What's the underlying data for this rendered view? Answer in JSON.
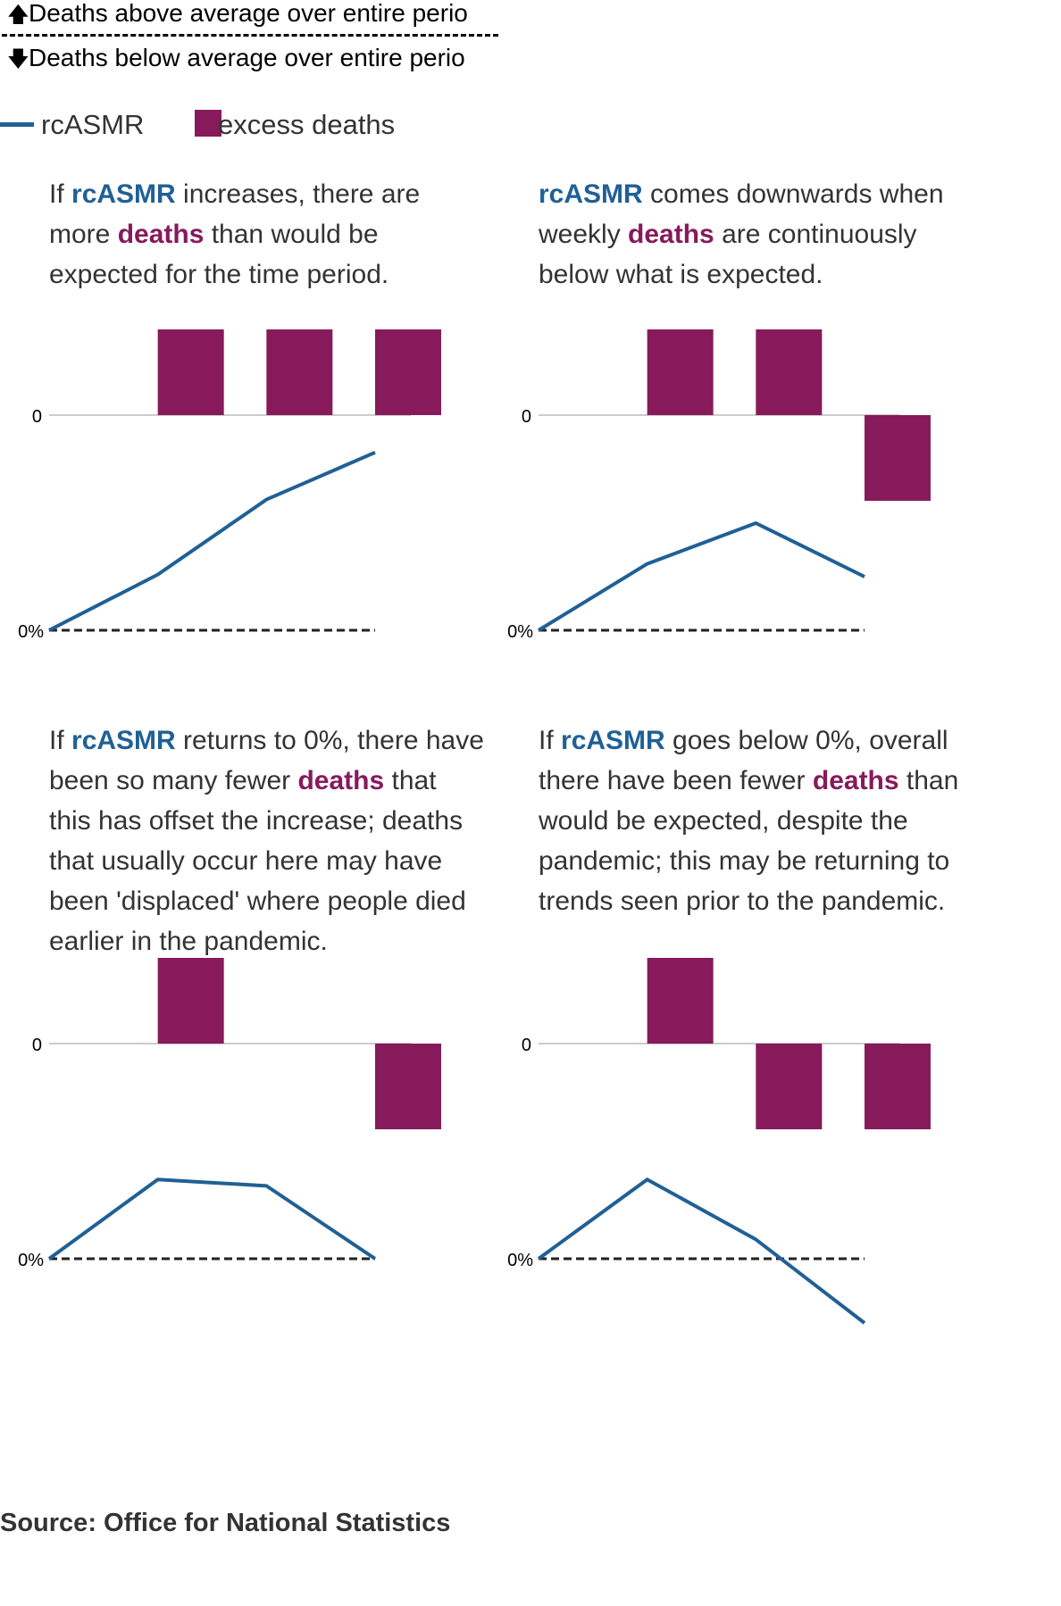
{
  "key": {
    "above": "Deaths above average over entire perio",
    "below": "Deaths below average over entire perio",
    "up_icon": "arrow-up-icon",
    "down_icon": "arrow-down-icon"
  },
  "legend": {
    "line_label": "rcASMR",
    "bar_label": "excess deaths"
  },
  "colors": {
    "line": "#206095",
    "bar": "#871a5b",
    "axis": "#cccccc",
    "text": "#333333"
  },
  "source": "Source: Office for National Statistics",
  "panels": [
    {
      "text_parts": [
        {
          "t": "If ",
          "style": "plain"
        },
        {
          "t": "rcASMR",
          "style": "blue"
        },
        {
          "t": " increases, there are",
          "style": "plain"
        },
        {
          "t": "\n",
          "style": "br"
        },
        {
          "t": "more ",
          "style": "plain"
        },
        {
          "t": "deaths",
          "style": "purple"
        },
        {
          "t": " than would be",
          "style": "plain"
        },
        {
          "t": "\n",
          "style": "br"
        },
        {
          "t": "expected for the time period.",
          "style": "plain"
        }
      ]
    },
    {
      "text_parts": [
        {
          "t": "rcASMR",
          "style": "blue"
        },
        {
          "t": " comes downwards when",
          "style": "plain"
        },
        {
          "t": "\n",
          "style": "br"
        },
        {
          "t": "weekly ",
          "style": "plain"
        },
        {
          "t": "deaths",
          "style": "purple"
        },
        {
          "t": " are continuously",
          "style": "plain"
        },
        {
          "t": "\n",
          "style": "br"
        },
        {
          "t": "below what is expected.",
          "style": "plain"
        }
      ]
    },
    {
      "text_parts": [
        {
          "t": "If ",
          "style": "plain"
        },
        {
          "t": "rcASMR",
          "style": "blue"
        },
        {
          "t": " returns to 0%, there have",
          "style": "plain"
        },
        {
          "t": "\n",
          "style": "br"
        },
        {
          "t": "been so many fewer ",
          "style": "plain"
        },
        {
          "t": "deaths",
          "style": "purple"
        },
        {
          "t": " that",
          "style": "plain"
        },
        {
          "t": "\n",
          "style": "br"
        },
        {
          "t": "this has offset the increase; deaths",
          "style": "plain"
        },
        {
          "t": "\n",
          "style": "br"
        },
        {
          "t": "that usually occur here may have",
          "style": "plain"
        },
        {
          "t": "\n",
          "style": "br"
        },
        {
          "t": "been 'displaced' where people died",
          "style": "plain"
        },
        {
          "t": "\n",
          "style": "br"
        },
        {
          "t": "earlier in the pandemic.",
          "style": "plain"
        }
      ]
    },
    {
      "text_parts": [
        {
          "t": "If ",
          "style": "plain"
        },
        {
          "t": "rcASMR",
          "style": "blue"
        },
        {
          "t": " goes below 0%, overall",
          "style": "plain"
        },
        {
          "t": "\n",
          "style": "br"
        },
        {
          "t": "there have been fewer ",
          "style": "plain"
        },
        {
          "t": "deaths",
          "style": "purple"
        },
        {
          "t": " than",
          "style": "plain"
        },
        {
          "t": "\n",
          "style": "br"
        },
        {
          "t": "would be expected, despite the",
          "style": "plain"
        },
        {
          "t": "\n",
          "style": "br"
        },
        {
          "t": "pandemic; this may be returning to",
          "style": "plain"
        },
        {
          "t": "\n",
          "style": "br"
        },
        {
          "t": "trends seen prior to the pandemic.",
          "style": "plain"
        }
      ]
    }
  ],
  "chart_data": [
    {
      "type": "bar+line",
      "bar_axis_label": "0",
      "line_axis_label": "0%",
      "bars": [
        0,
        1,
        1,
        1
      ],
      "line": [
        0,
        0.26,
        0.61,
        0.83
      ]
    },
    {
      "type": "bar+line",
      "bar_axis_label": "0",
      "line_axis_label": "0%",
      "bars": [
        0,
        1,
        1,
        -1
      ],
      "line": [
        0,
        0.31,
        0.5,
        0.25
      ]
    },
    {
      "type": "bar+line",
      "bar_axis_label": "0",
      "line_axis_label": "0%",
      "bars": [
        0,
        1,
        0,
        -1
      ],
      "line": [
        0,
        0.37,
        0.34,
        0
      ]
    },
    {
      "type": "bar+line",
      "bar_axis_label": "0",
      "line_axis_label": "0%",
      "bars": [
        0,
        1,
        -1,
        -1
      ],
      "line": [
        0,
        0.37,
        0.09,
        -0.3
      ]
    }
  ]
}
